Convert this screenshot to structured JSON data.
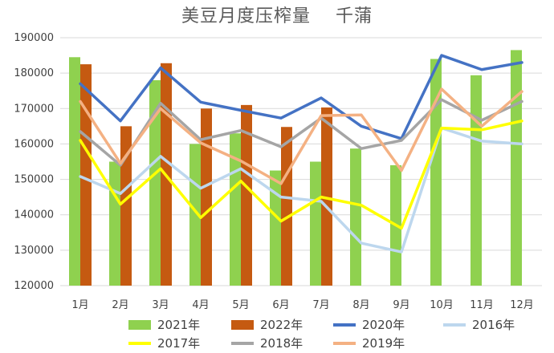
{
  "chart_data": {
    "type": "bar",
    "title": "美豆月度压榨量　 千蒲",
    "categories": [
      "1月",
      "2月",
      "3月",
      "4月",
      "5月",
      "6月",
      "7月",
      "8月",
      "9月",
      "10月",
      "11月",
      "12月"
    ],
    "ylim": [
      120000,
      190000
    ],
    "yticks": [
      120000,
      130000,
      140000,
      150000,
      160000,
      170000,
      180000,
      190000
    ],
    "grid": true,
    "legend_position": "bottom",
    "bar_series": [
      {
        "name": "2021年",
        "color": "#8fd14f",
        "values": [
          184500,
          155000,
          178000,
          160000,
          163000,
          152500,
          155000,
          158700,
          154000,
          184000,
          179400,
          186500
        ]
      },
      {
        "name": "2022年",
        "color": "#c55a11",
        "values": [
          182500,
          165000,
          182800,
          170000,
          171000,
          164800,
          170300,
          null,
          null,
          null,
          null,
          null
        ]
      }
    ],
    "line_series": [
      {
        "name": "2020年",
        "color": "#4472c4",
        "values": [
          177000,
          166500,
          181500,
          171800,
          169500,
          167300,
          173000,
          165000,
          161500,
          185000,
          181000,
          183000
        ]
      },
      {
        "name": "2016年",
        "color": "#bdd7ee",
        "values": [
          150800,
          146000,
          156500,
          147500,
          153000,
          145000,
          143800,
          132000,
          129500,
          164500,
          160800,
          160000
        ]
      },
      {
        "name": "2017年",
        "color": "#ffff00",
        "values": [
          161000,
          143000,
          153000,
          139200,
          149500,
          138200,
          145000,
          142700,
          136200,
          164500,
          164000,
          166500
        ]
      },
      {
        "name": "2018年",
        "color": "#a5a5a5",
        "values": [
          163500,
          154000,
          171500,
          161200,
          163800,
          159200,
          167300,
          158700,
          161000,
          172500,
          166700,
          172000
        ]
      },
      {
        "name": "2019年",
        "color": "#f4b183",
        "values": [
          172000,
          154500,
          170000,
          160300,
          155200,
          148800,
          168000,
          168200,
          152500,
          175500,
          165000,
          174800
        ]
      }
    ],
    "legend_order": [
      "2021年",
      "2022年",
      "2020年",
      "2016年",
      "2017年",
      "2018年",
      "2019年"
    ]
  }
}
